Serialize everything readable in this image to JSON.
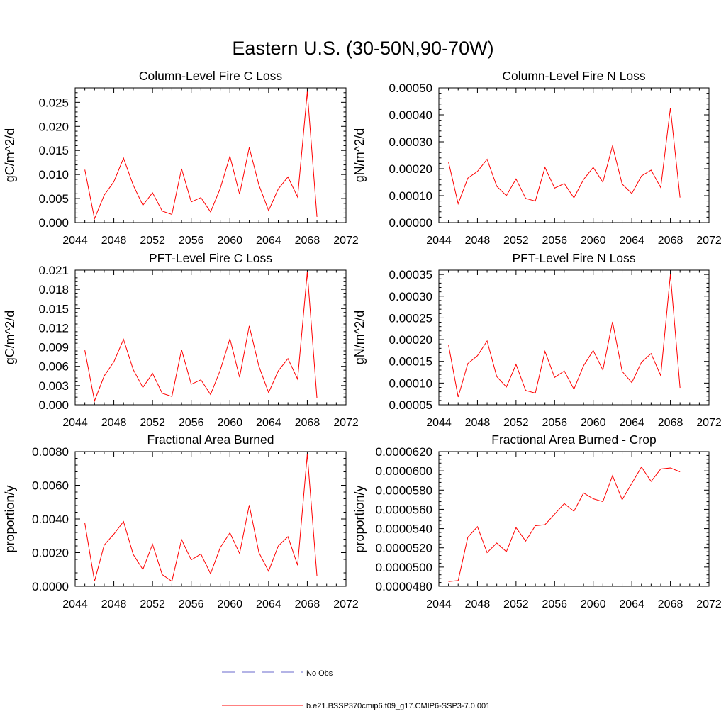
{
  "page": {
    "title": "Eastern U.S. (30-50N,90-70W)"
  },
  "colors": {
    "series": "#ff0000",
    "obs": "#6a6acd",
    "axis": "#000000"
  },
  "legend": {
    "obs_label": "No Obs",
    "series_label": "b.e21.BSSP370cmip6.f09_g17.CMIP6-SSP3-7.0.001"
  },
  "chart_data": [
    {
      "type": "line",
      "title": "Column-Level Fire C Loss",
      "ylabel": "gC/m^2/d",
      "xlim": [
        2044,
        2072
      ],
      "ylim": [
        0.0,
        0.028
      ],
      "xticks": [
        "2044",
        "2048",
        "2052",
        "2056",
        "2060",
        "2064",
        "2068",
        "2072"
      ],
      "yticks": [
        "0.000",
        "0.005",
        "0.010",
        "0.015",
        "0.020",
        "0.025"
      ],
      "x": [
        2045,
        2046,
        2047,
        2048,
        2049,
        2050,
        2051,
        2052,
        2053,
        2054,
        2055,
        2056,
        2057,
        2058,
        2059,
        2060,
        2061,
        2062,
        2063,
        2064,
        2065,
        2066,
        2067,
        2068,
        2069
      ],
      "values": [
        0.011,
        0.0008,
        0.0057,
        0.0085,
        0.0134,
        0.0078,
        0.0036,
        0.0062,
        0.0024,
        0.0017,
        0.0112,
        0.0043,
        0.0052,
        0.0022,
        0.0071,
        0.0138,
        0.0059,
        0.0156,
        0.0078,
        0.0025,
        0.007,
        0.0095,
        0.0053,
        0.0272,
        0.0012
      ]
    },
    {
      "type": "line",
      "title": "Column-Level Fire N Loss",
      "ylabel": "gN/m^2/d",
      "xlim": [
        2044,
        2072
      ],
      "ylim": [
        0.0,
        0.0005
      ],
      "xticks": [
        "2044",
        "2048",
        "2052",
        "2056",
        "2060",
        "2064",
        "2068",
        "2072"
      ],
      "yticks": [
        "0.00000",
        "0.00010",
        "0.00020",
        "0.00030",
        "0.00040",
        "0.00050"
      ],
      "x": [
        2045,
        2046,
        2047,
        2048,
        2049,
        2050,
        2051,
        2052,
        2053,
        2054,
        2055,
        2056,
        2057,
        2058,
        2059,
        2060,
        2061,
        2062,
        2063,
        2064,
        2065,
        2066,
        2067,
        2068,
        2069
      ],
      "values": [
        0.000225,
        7e-05,
        0.000165,
        0.00019,
        0.000235,
        0.000135,
        0.0001,
        0.000162,
        9e-05,
        8e-05,
        0.000205,
        0.000128,
        0.000145,
        9.2e-05,
        0.00016,
        0.000205,
        0.00015,
        0.000285,
        0.000143,
        0.000108,
        0.000173,
        0.000195,
        0.00013,
        0.000425,
        9.3e-05
      ]
    },
    {
      "type": "line",
      "title": "PFT-Level Fire C Loss",
      "ylabel": "gC/m^2/d",
      "xlim": [
        2044,
        2072
      ],
      "ylim": [
        0.0,
        0.021
      ],
      "xticks": [
        "2044",
        "2048",
        "2052",
        "2056",
        "2060",
        "2064",
        "2068",
        "2072"
      ],
      "yticks": [
        "0.000",
        "0.003",
        "0.006",
        "0.009",
        "0.012",
        "0.015",
        "0.018",
        "0.021"
      ],
      "x": [
        2045,
        2046,
        2047,
        2048,
        2049,
        2050,
        2051,
        2052,
        2053,
        2054,
        2055,
        2056,
        2057,
        2058,
        2059,
        2060,
        2061,
        2062,
        2063,
        2064,
        2065,
        2066,
        2067,
        2068,
        2069
      ],
      "values": [
        0.0085,
        0.0006,
        0.0045,
        0.0067,
        0.0102,
        0.0055,
        0.0027,
        0.0049,
        0.0018,
        0.0013,
        0.0086,
        0.0032,
        0.0039,
        0.0016,
        0.0054,
        0.0103,
        0.0043,
        0.0123,
        0.006,
        0.0019,
        0.0053,
        0.0072,
        0.004,
        0.0207,
        0.001
      ]
    },
    {
      "type": "line",
      "title": "PFT-Level Fire N Loss",
      "ylabel": "gN/m^2/d",
      "xlim": [
        2044,
        2072
      ],
      "ylim": [
        5e-05,
        0.00036
      ],
      "xticks": [
        "2044",
        "2048",
        "2052",
        "2056",
        "2060",
        "2064",
        "2068",
        "2072"
      ],
      "yticks": [
        "0.00005",
        "0.00010",
        "0.00015",
        "0.00020",
        "0.00025",
        "0.00030",
        "0.00035"
      ],
      "x": [
        2045,
        2046,
        2047,
        2048,
        2049,
        2050,
        2051,
        2052,
        2053,
        2054,
        2055,
        2056,
        2057,
        2058,
        2059,
        2060,
        2061,
        2062,
        2063,
        2064,
        2065,
        2066,
        2067,
        2068,
        2069
      ],
      "values": [
        0.000188,
        6.8e-05,
        0.000145,
        0.000163,
        0.000197,
        0.000115,
        9.1e-05,
        0.000143,
        8.3e-05,
        7.7e-05,
        0.000173,
        0.000113,
        0.000128,
        8.6e-05,
        0.00014,
        0.000175,
        0.00013,
        0.000241,
        0.000127,
        0.000101,
        0.000148,
        0.000168,
        0.000117,
        0.00035,
        8.9e-05
      ]
    },
    {
      "type": "line",
      "title": "Fractional Area Burned",
      "ylabel": "proportion/y",
      "xlim": [
        2044,
        2072
      ],
      "ylim": [
        0.0,
        0.008
      ],
      "xticks": [
        "2044",
        "2048",
        "2052",
        "2056",
        "2060",
        "2064",
        "2068",
        "2072"
      ],
      "yticks": [
        "0.0000",
        "0.0020",
        "0.0040",
        "0.0060",
        "0.0080"
      ],
      "x": [
        2045,
        2046,
        2047,
        2048,
        2049,
        2050,
        2051,
        2052,
        2053,
        2054,
        2055,
        2056,
        2057,
        2058,
        2059,
        2060,
        2061,
        2062,
        2063,
        2064,
        2065,
        2066,
        2067,
        2068,
        2069
      ],
      "values": [
        0.00375,
        0.0003,
        0.00245,
        0.0031,
        0.00385,
        0.0019,
        0.001,
        0.0025,
        0.0007,
        0.0003,
        0.00278,
        0.00157,
        0.00192,
        0.00075,
        0.0023,
        0.00318,
        0.00195,
        0.00482,
        0.002,
        0.0009,
        0.0024,
        0.00295,
        0.00125,
        0.00785,
        0.0006
      ]
    },
    {
      "type": "line",
      "title": "Fractional Area Burned - Crop",
      "ylabel": "proportion/y",
      "xlim": [
        2044,
        2072
      ],
      "ylim": [
        4.8e-05,
        6.2e-05
      ],
      "xticks": [
        "2044",
        "2048",
        "2052",
        "2056",
        "2060",
        "2064",
        "2068",
        "2072"
      ],
      "yticks": [
        "0.0000480",
        "0.0000500",
        "0.0000520",
        "0.0000540",
        "0.0000560",
        "0.0000580",
        "0.0000600",
        "0.0000620"
      ],
      "x": [
        2045,
        2046,
        2047,
        2048,
        2049,
        2050,
        2051,
        2052,
        2053,
        2054,
        2055,
        2056,
        2057,
        2058,
        2059,
        2060,
        2061,
        2062,
        2063,
        2064,
        2065,
        2066,
        2067,
        2068,
        2069
      ],
      "values": [
        4.85e-05,
        4.86e-05,
        5.31e-05,
        5.42e-05,
        5.15e-05,
        5.25e-05,
        5.16e-05,
        5.41e-05,
        5.27e-05,
        5.43e-05,
        5.44e-05,
        5.55e-05,
        5.66e-05,
        5.58e-05,
        5.77e-05,
        5.71e-05,
        5.68e-05,
        5.95e-05,
        5.7e-05,
        5.87e-05,
        6.04e-05,
        5.89e-05,
        6.02e-05,
        6.03e-05,
        5.99e-05
      ]
    }
  ]
}
